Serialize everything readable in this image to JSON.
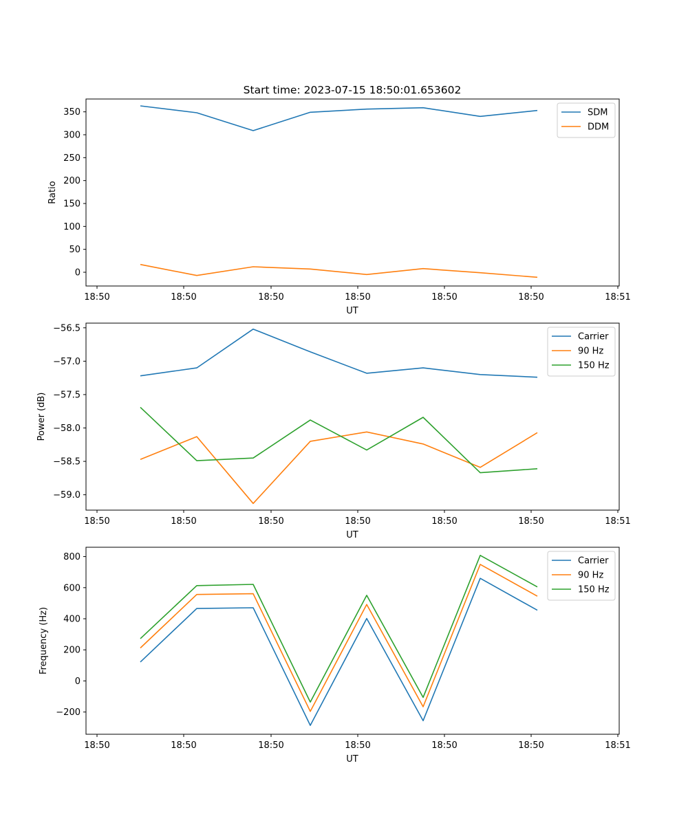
{
  "figure": {
    "title": "Start time: 2023-07-15 18:50:01.653602"
  },
  "colors": {
    "blue": "#1f77b4",
    "orange": "#ff7f0e",
    "green": "#2ca02c"
  },
  "chart_data": [
    {
      "type": "line",
      "title": "Start time: 2023-07-15 18:50:01.653602",
      "xlabel": "UT",
      "ylabel": "Ratio",
      "x_tick_labels": [
        "18:50",
        "18:50",
        "18:50",
        "18:50",
        "18:50",
        "18:50",
        "18:50",
        "18:51"
      ],
      "y_ticks": [
        0,
        50,
        100,
        150,
        200,
        250,
        300,
        350
      ],
      "y_tick_labels": [
        "0",
        "50",
        "100",
        "150",
        "200",
        "250",
        "300",
        "350"
      ],
      "ylim": [
        -30,
        378
      ],
      "grid": false,
      "legend": "top-right",
      "series": [
        {
          "name": "SDM",
          "color": "#1f77b4",
          "values": [
            363,
            348,
            309,
            349,
            356,
            359,
            340,
            353
          ]
        },
        {
          "name": "DDM",
          "color": "#ff7f0e",
          "values": [
            17,
            -7,
            12,
            7,
            -5,
            8,
            -1,
            -11
          ]
        }
      ]
    },
    {
      "type": "line",
      "xlabel": "UT",
      "ylabel": "Power (dB)",
      "x_tick_labels": [
        "18:50",
        "18:50",
        "18:50",
        "18:50",
        "18:50",
        "18:50",
        "18:50",
        "18:51"
      ],
      "y_ticks": [
        -59.0,
        -58.5,
        -58.0,
        -57.5,
        -57.0,
        -56.5
      ],
      "y_tick_labels": [
        "−59.0",
        "−58.5",
        "−58.0",
        "−57.5",
        "−57.0",
        "−56.5"
      ],
      "ylim": [
        -59.23,
        -56.43
      ],
      "grid": false,
      "legend": "top-right",
      "series": [
        {
          "name": "Carrier",
          "color": "#1f77b4",
          "values": [
            -57.22,
            -57.1,
            -56.52,
            -56.86,
            -57.18,
            -57.1,
            -57.2,
            -57.24
          ]
        },
        {
          "name": "90 Hz",
          "color": "#ff7f0e",
          "values": [
            -58.47,
            -58.13,
            -59.13,
            -58.2,
            -58.06,
            -58.24,
            -58.59,
            -58.07
          ]
        },
        {
          "name": "150 Hz",
          "color": "#2ca02c",
          "values": [
            -57.69,
            -58.49,
            -58.45,
            -57.88,
            -58.33,
            -57.84,
            -58.67,
            -58.61
          ]
        }
      ]
    },
    {
      "type": "line",
      "xlabel": "UT",
      "ylabel": "Frequency (Hz)",
      "x_tick_labels": [
        "18:50",
        "18:50",
        "18:50",
        "18:50",
        "18:50",
        "18:50",
        "18:50",
        "18:51"
      ],
      "y_ticks": [
        -200,
        0,
        200,
        400,
        600,
        800
      ],
      "y_tick_labels": [
        "−200",
        "0",
        "200",
        "400",
        "600",
        "800"
      ],
      "ylim": [
        -343,
        860
      ],
      "grid": false,
      "legend": "top-right",
      "series": [
        {
          "name": "Carrier",
          "color": "#1f77b4",
          "values": [
            122,
            466,
            471,
            -286,
            402,
            -256,
            660,
            455
          ]
        },
        {
          "name": "90 Hz",
          "color": "#ff7f0e",
          "values": [
            212,
            556,
            561,
            -196,
            492,
            -166,
            750,
            545
          ]
        },
        {
          "name": "150 Hz",
          "color": "#2ca02c",
          "values": [
            272,
            613,
            621,
            -136,
            551,
            -106,
            808,
            605
          ]
        }
      ]
    }
  ]
}
